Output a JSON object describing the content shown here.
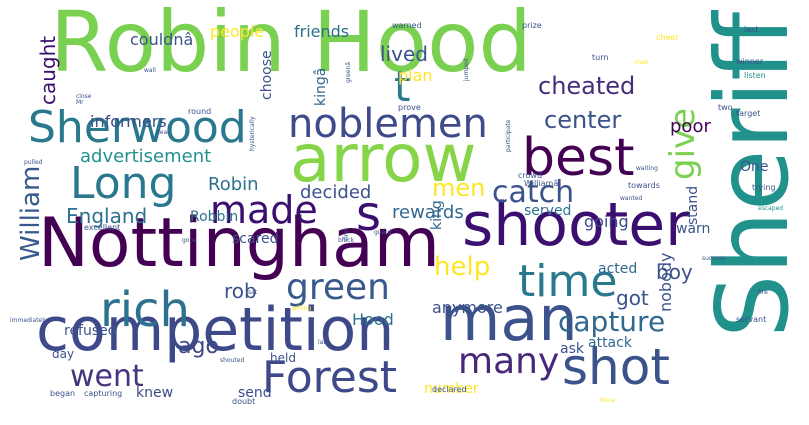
{
  "words": [
    {
      "text": "Robin Hood",
      "color": "#7ad151"
    },
    {
      "text": "Sheriff",
      "color": "#21918c"
    },
    {
      "text": "arrow",
      "color": "#86d549"
    },
    {
      "text": "Nottingham",
      "color": "#440154"
    },
    {
      "text": "shooter",
      "color": "#3b0f70"
    },
    {
      "text": "competition",
      "color": "#3e4989"
    },
    {
      "text": "man",
      "color": "#3b528b"
    },
    {
      "text": "best",
      "color": "#440154"
    },
    {
      "text": "Sherwood",
      "color": "#2a788e"
    },
    {
      "text": "noblemen",
      "color": "#3e4a89"
    },
    {
      "text": "Forest",
      "color": "#3e4989"
    },
    {
      "text": "shot",
      "color": "#3b528b"
    },
    {
      "text": "time",
      "color": "#2a788e"
    },
    {
      "text": "rich",
      "color": "#2c728e"
    },
    {
      "text": "Long",
      "color": "#2a788e"
    },
    {
      "text": "made",
      "color": "#3b0f70"
    },
    {
      "text": "s",
      "color": "#3b0f70"
    },
    {
      "text": "give",
      "color": "#7ad151"
    },
    {
      "text": "t",
      "color": "#2a788e"
    },
    {
      "text": "William",
      "color": "#38598c"
    },
    {
      "text": "green",
      "color": "#38598c"
    },
    {
      "text": "capture",
      "color": "#31688e"
    },
    {
      "text": "many",
      "color": "#482878"
    },
    {
      "text": "went",
      "color": "#463480"
    },
    {
      "text": "help",
      "color": "#fde725"
    },
    {
      "text": "catch",
      "color": "#3b528b"
    },
    {
      "text": "center",
      "color": "#3b528b"
    },
    {
      "text": "cheated",
      "color": "#472c7a"
    },
    {
      "text": "men",
      "color": "#fde725"
    },
    {
      "text": "ago",
      "color": "#3e4989"
    },
    {
      "text": "got",
      "color": "#3b528b"
    },
    {
      "text": "boy",
      "color": "#3b528b"
    },
    {
      "text": "poor",
      "color": "#440154"
    },
    {
      "text": "rob",
      "color": "#3b528b"
    },
    {
      "text": "lived",
      "color": "#3b528b"
    },
    {
      "text": "plan",
      "color": "#fde725"
    },
    {
      "text": "caught",
      "color": "#3b0f70"
    },
    {
      "text": "England",
      "color": "#2c728e"
    },
    {
      "text": "Robin",
      "color": "#2c728e"
    },
    {
      "text": "decided",
      "color": "#3b528b"
    },
    {
      "text": "rewards",
      "color": "#31688e"
    },
    {
      "text": "advertisement",
      "color": "#21918c"
    },
    {
      "text": "informers",
      "color": "#3b528b"
    },
    {
      "text": "couldnâ",
      "color": "#3b528b"
    },
    {
      "text": "people",
      "color": "#fde725"
    },
    {
      "text": "friends",
      "color": "#2c728e"
    },
    {
      "text": "choose",
      "color": "#3b528b"
    },
    {
      "text": "kingâ",
      "color": "#31688e"
    },
    {
      "text": "nobody",
      "color": "#3b528b"
    },
    {
      "text": "stand",
      "color": "#3b528b"
    },
    {
      "text": "One",
      "color": "#3b528b"
    },
    {
      "text": "warn",
      "color": "#3b528b"
    },
    {
      "text": "going",
      "color": "#3e4989"
    },
    {
      "text": "served",
      "color": "#2c728e"
    },
    {
      "text": "acted",
      "color": "#31688e"
    },
    {
      "text": "king",
      "color": "#31688e"
    },
    {
      "text": "anymore",
      "color": "#3b528b"
    },
    {
      "text": "Hood",
      "color": "#2c728e"
    },
    {
      "text": "number",
      "color": "#fde725"
    },
    {
      "text": "ask",
      "color": "#3b528b"
    },
    {
      "text": "attack",
      "color": "#31688e"
    },
    {
      "text": "send",
      "color": "#3e4989"
    },
    {
      "text": "knew",
      "color": "#3e4989"
    },
    {
      "text": "refused",
      "color": "#3b528b"
    },
    {
      "text": "day",
      "color": "#3b528b"
    },
    {
      "text": "held",
      "color": "#3b528b"
    },
    {
      "text": "scared",
      "color": "#3b528b"
    },
    {
      "text": "Robbin",
      "color": "#2c728e"
    },
    {
      "text": "prize",
      "color": "#3b528b"
    },
    {
      "text": "cheer",
      "color": "#fde725"
    },
    {
      "text": "last",
      "color": "#3b528b"
    },
    {
      "text": "winner",
      "color": "#3b528b"
    },
    {
      "text": "listen",
      "color": "#21918c"
    },
    {
      "text": "target",
      "color": "#3b528b"
    },
    {
      "text": "two",
      "color": "#3b528b"
    },
    {
      "text": "trying",
      "color": "#3b528b"
    },
    {
      "text": "crowd",
      "color": "#3b528b"
    },
    {
      "text": "Williamâ",
      "color": "#3b528b"
    },
    {
      "text": "towards",
      "color": "#3b528b"
    },
    {
      "text": "declared",
      "color": "#3b528b"
    },
    {
      "text": "servant",
      "color": "#3b528b"
    },
    {
      "text": "began",
      "color": "#3b528b"
    },
    {
      "text": "capturing",
      "color": "#3b528b"
    },
    {
      "text": "doubt",
      "color": "#3b528b"
    },
    {
      "text": "excellent",
      "color": "#3b528b"
    },
    {
      "text": "round",
      "color": "#3b528b"
    },
    {
      "text": "prove",
      "color": "#3b528b"
    },
    {
      "text": "warned",
      "color": "#3b528b"
    },
    {
      "text": "turn",
      "color": "#3b528b"
    },
    {
      "text": "jumped",
      "color": "#3b528b"
    },
    {
      "text": "participate",
      "color": "#3b528b"
    },
    {
      "text": "hysterically",
      "color": "#3b528b"
    },
    {
      "text": "chair",
      "color": "#fde725"
    },
    {
      "text": "greenâ",
      "color": "#3b528b"
    },
    {
      "text": "pulled",
      "color": "#3b528b"
    },
    {
      "text": "immediately",
      "color": "#3b528b"
    },
    {
      "text": "willing",
      "color": "#fde725"
    },
    {
      "text": "first",
      "color": "#3b528b"
    },
    {
      "text": "sat",
      "color": "#3b528b"
    },
    {
      "text": "black",
      "color": "#3b528b"
    },
    {
      "text": "escaped",
      "color": "#21918c"
    },
    {
      "text": "force",
      "color": "#fde725"
    },
    {
      "text": "wall",
      "color": "#3b528b"
    },
    {
      "text": "close",
      "color": "#3b528b"
    },
    {
      "text": "Mr",
      "color": "#3b528b"
    },
    {
      "text": "fire",
      "color": "#3b528b"
    },
    {
      "text": "late",
      "color": "#3b528b"
    },
    {
      "text": "gone",
      "color": "#3b528b"
    },
    {
      "text": "success",
      "color": "#3b528b"
    },
    {
      "text": "waiting",
      "color": "#3b528b"
    },
    {
      "text": "shouted",
      "color": "#3b528b"
    },
    {
      "text": "guard",
      "color": "#3b528b"
    },
    {
      "text": "wanted",
      "color": "#3b528b"
    },
    {
      "text": "dear",
      "color": "#3b528b"
    }
  ]
}
